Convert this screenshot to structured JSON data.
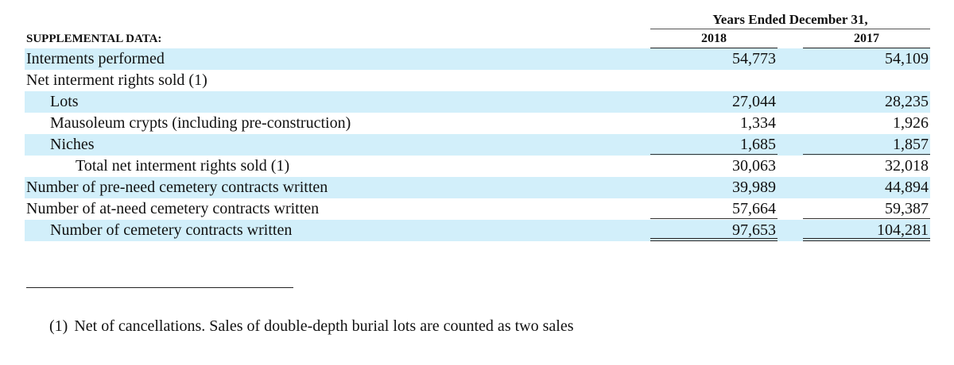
{
  "header": {
    "period": "Years Ended December 31,",
    "section_label": "SUPPLEMENTAL DATA:",
    "columns": [
      "2018",
      "2017"
    ]
  },
  "rows": [
    {
      "label": "Interments performed",
      "v2018": "54,773",
      "v2017": "54,109"
    },
    {
      "label": "Net interment rights sold (1)",
      "v2018": "",
      "v2017": ""
    },
    {
      "label": "Lots",
      "v2018": "27,044",
      "v2017": "28,235"
    },
    {
      "label": "Mausoleum crypts (including pre-construction)",
      "v2018": "1,334",
      "v2017": "1,926"
    },
    {
      "label": "Niches",
      "v2018": "1,685",
      "v2017": "1,857"
    },
    {
      "label": "Total net interment rights sold (1)",
      "v2018": "30,063",
      "v2017": "32,018"
    },
    {
      "label": "Number of pre-need cemetery contracts written",
      "v2018": "39,989",
      "v2017": "44,894"
    },
    {
      "label": "Number of at-need cemetery contracts written",
      "v2018": "57,664",
      "v2017": "59,387"
    },
    {
      "label": "Number of cemetery contracts written",
      "v2018": "97,653",
      "v2017": "104,281"
    }
  ],
  "footnote": {
    "marker": "(1)",
    "text": "Net of cancellations. Sales of double-depth burial lots are counted as two sales"
  }
}
